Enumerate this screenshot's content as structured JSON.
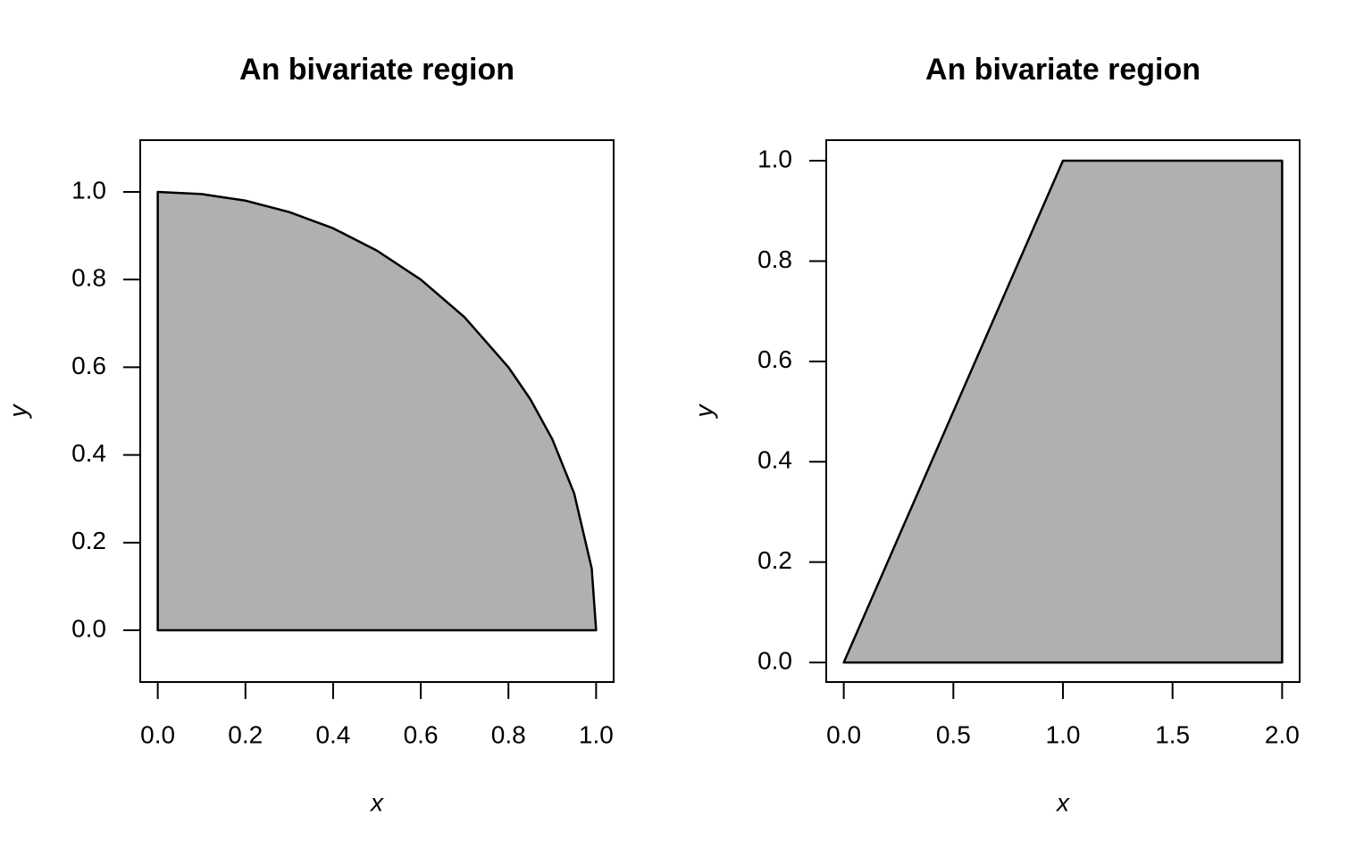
{
  "chart_data": [
    {
      "type": "polygon",
      "title": "An bivariate region",
      "xlabel": "x",
      "ylabel": "y",
      "x": [
        0,
        0,
        0.1,
        0.2,
        0.3,
        0.4,
        0.5,
        0.6,
        0.7,
        0.8,
        0.85,
        0.9,
        0.95,
        0.99,
        1
      ],
      "y": [
        0,
        1,
        0.995,
        0.98,
        0.954,
        0.917,
        0.866,
        0.8,
        0.714,
        0.6,
        0.527,
        0.436,
        0.312,
        0.141,
        0
      ],
      "color": "#b0b0b0",
      "xlim": [
        -0.04,
        1.04
      ],
      "ylim": [
        -0.118,
        1.118
      ],
      "xticks": [
        {
          "value": 0,
          "label": "0.0"
        },
        0.2,
        0.4,
        0.6,
        0.8,
        {
          "value": 1,
          "label": "1.0"
        }
      ],
      "yticks": [
        {
          "value": 0,
          "label": "0.0"
        },
        0.2,
        0.4,
        0.6,
        0.8,
        {
          "value": 1,
          "label": "1.0"
        }
      ]
    },
    {
      "type": "polygon",
      "title": "An bivariate region",
      "xlabel": "x",
      "ylabel": "y",
      "x": [
        0,
        1,
        2,
        2
      ],
      "y": [
        0,
        1,
        1,
        0
      ],
      "color": "#b0b0b0",
      "xlim": [
        -0.08,
        2.08
      ],
      "ylim": [
        -0.039,
        1.041
      ],
      "xticks": [
        {
          "value": 0,
          "label": "0.0"
        },
        0.5,
        {
          "value": 1,
          "label": "1.0"
        },
        1.5,
        {
          "value": 2,
          "label": "2.0"
        }
      ],
      "yticks": [
        {
          "value": 0,
          "label": "0.0"
        },
        0.2,
        0.4,
        0.6,
        0.8,
        {
          "value": 1,
          "label": "1.0"
        }
      ]
    }
  ]
}
